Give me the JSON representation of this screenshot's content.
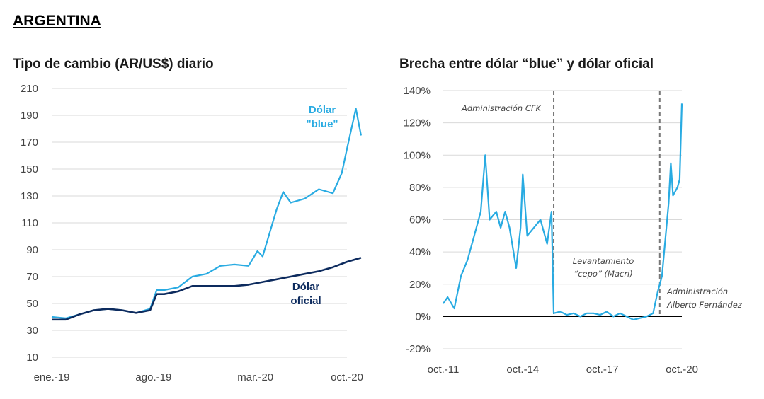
{
  "header": {
    "country": "ARGENTINA"
  },
  "colors": {
    "blue": "#29abe2",
    "navy": "#0d2b5e",
    "grid": "#d9d9d9",
    "zero_line": "#000000",
    "dashed": "#777777"
  },
  "chart_data": [
    {
      "type": "line",
      "title": "Tipo de cambio (AR/US$) diario",
      "xlabel": "",
      "ylabel": "",
      "x_ticks": [
        "ene.-19",
        "ago.-19",
        "mar.-20",
        "oct.-20"
      ],
      "x_range": [
        "2019-01",
        "2020-10"
      ],
      "y_ticks": [
        10,
        30,
        50,
        70,
        90,
        110,
        130,
        150,
        170,
        190,
        210
      ],
      "ylim": [
        10,
        210
      ],
      "grid": "horizontal",
      "series_labels": [
        [
          "Dólar",
          "\"blue\""
        ],
        [
          "Dólar",
          "oficial"
        ]
      ],
      "series": [
        {
          "name": "Dólar \"blue\"",
          "color": "#29abe2",
          "x": [
            "2019-01",
            "2019-02",
            "2019-03",
            "2019-04",
            "2019-05",
            "2019-06",
            "2019-07",
            "2019-08",
            "2019-08-15",
            "2019-09",
            "2019-10",
            "2019-11",
            "2019-12",
            "2020-01",
            "2020-02",
            "2020-03",
            "2020-03-20",
            "2020-04",
            "2020-05",
            "2020-05-15",
            "2020-06",
            "2020-07",
            "2020-08",
            "2020-09",
            "2020-09-20",
            "2020-10",
            "2020-10-20",
            "2020-10-31"
          ],
          "values": [
            40,
            39,
            42,
            45,
            46,
            45,
            43,
            46,
            60,
            60,
            62,
            70,
            72,
            78,
            79,
            78,
            89,
            85,
            120,
            133,
            125,
            128,
            135,
            132,
            147,
            165,
            195,
            175
          ]
        },
        {
          "name": "Dólar oficial",
          "color": "#0d2b5e",
          "x": [
            "2019-01",
            "2019-02",
            "2019-03",
            "2019-04",
            "2019-05",
            "2019-06",
            "2019-07",
            "2019-08",
            "2019-08-15",
            "2019-09",
            "2019-10",
            "2019-11",
            "2019-12",
            "2020-01",
            "2020-02",
            "2020-03",
            "2020-04",
            "2020-05",
            "2020-06",
            "2020-07",
            "2020-08",
            "2020-09",
            "2020-10",
            "2020-10-31"
          ],
          "values": [
            38,
            38,
            42,
            45,
            46,
            45,
            43,
            45,
            57,
            57,
            59,
            63,
            63,
            63,
            63,
            64,
            66,
            68,
            70,
            72,
            74,
            77,
            81,
            84
          ]
        }
      ]
    },
    {
      "type": "line",
      "title": "Brecha entre dólar “blue” y dólar oficial",
      "xlabel": "",
      "ylabel": "",
      "x_ticks": [
        "oct.-11",
        "oct.-14",
        "oct.-17",
        "oct.-20"
      ],
      "x_range": [
        "2011-10",
        "2020-10"
      ],
      "y_ticks": [
        "-20%",
        "0%",
        "20%",
        "40%",
        "60%",
        "80%",
        "100%",
        "120%",
        "140%"
      ],
      "ylim": [
        -20,
        140
      ],
      "grid": "horizontal",
      "reference_line": 0,
      "events": [
        {
          "date": "2015-12",
          "label": "Administración CFK"
        },
        {
          "date": "2019-12",
          "label_lines": [
            "Administración",
            "Alberto Fernández"
          ]
        }
      ],
      "annotation": {
        "lines": [
          "Levantamiento",
          "“cepo” (Macri)"
        ]
      },
      "series": [
        {
          "name": "Brecha",
          "color": "#29abe2",
          "x": [
            "2011-10",
            "2011-12",
            "2012-03",
            "2012-06",
            "2012-09",
            "2012-12",
            "2013-03",
            "2013-05",
            "2013-07",
            "2013-10",
            "2013-12",
            "2014-02",
            "2014-04",
            "2014-07",
            "2014-09",
            "2014-10",
            "2014-12",
            "2015-03",
            "2015-06",
            "2015-09",
            "2015-11",
            "2015-12",
            "2016-03",
            "2016-06",
            "2016-09",
            "2016-12",
            "2017-03",
            "2017-06",
            "2017-09",
            "2017-12",
            "2018-03",
            "2018-06",
            "2018-09",
            "2018-12",
            "2019-03",
            "2019-06",
            "2019-09",
            "2019-11",
            "2020-01",
            "2020-04",
            "2020-05",
            "2020-06",
            "2020-08",
            "2020-09",
            "2020-10"
          ],
          "values": [
            8,
            12,
            5,
            25,
            35,
            50,
            65,
            100,
            60,
            65,
            55,
            65,
            55,
            30,
            55,
            88,
            50,
            55,
            60,
            45,
            65,
            2,
            3,
            1,
            2,
            0,
            2,
            2,
            1,
            3,
            0,
            2,
            0,
            -2,
            -1,
            0,
            2,
            15,
            25,
            70,
            95,
            75,
            80,
            85,
            132
          ]
        }
      ]
    }
  ]
}
